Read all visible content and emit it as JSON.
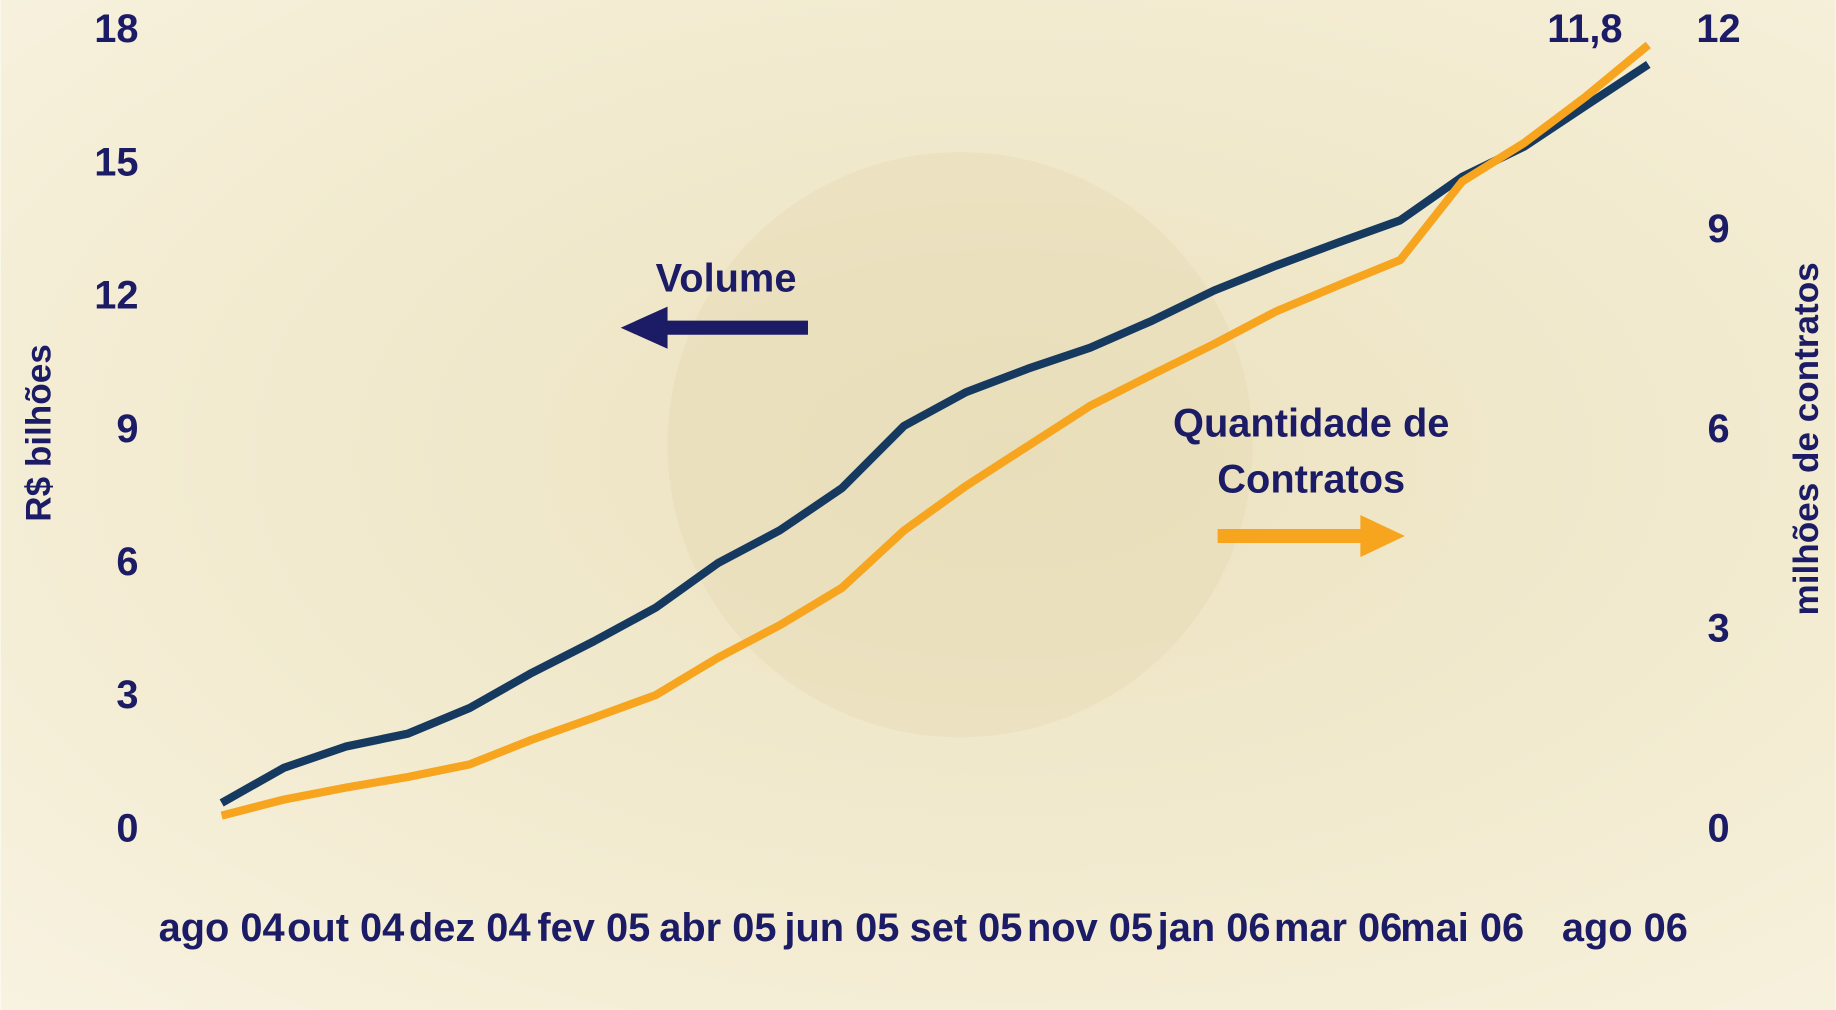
{
  "chart_data": {
    "type": "line",
    "categories": [
      "ago 04",
      null,
      "out 04",
      null,
      "dez 04",
      null,
      "fev 05",
      null,
      "abr 05",
      null,
      "jun 05",
      null,
      "set 05",
      null,
      "nov 05",
      null,
      "jan 06",
      null,
      "mar 06",
      null,
      "mai 06",
      null,
      null,
      "ago 06"
    ],
    "series": [
      {
        "name": "Volume",
        "color": "#163a5f",
        "axis": "y",
        "values": [
          0.63,
          1.42,
          1.9,
          2.19,
          2.77,
          3.56,
          4.27,
          5.03,
          6.03,
          6.77,
          7.72,
          9.12,
          9.88,
          10.41,
          10.88,
          11.49,
          12.17,
          12.73,
          13.25,
          13.75,
          14.73,
          15.41,
          16.34,
          17.26
        ]
      },
      {
        "name": "Quantidade de Contratos",
        "color": "#f7a51f",
        "axis": "y2",
        "values": [
          0.23,
          0.47,
          0.65,
          0.81,
          1.0,
          1.37,
          1.7,
          2.04,
          2.6,
          3.09,
          3.65,
          4.51,
          5.18,
          5.78,
          6.38,
          6.85,
          7.31,
          7.8,
          8.19,
          8.57,
          9.75,
          10.33,
          11.03,
          11.8
        ],
        "value_labels": [
          null,
          null,
          null,
          null,
          null,
          null,
          null,
          null,
          null,
          null,
          null,
          null,
          null,
          null,
          null,
          null,
          null,
          null,
          null,
          null,
          null,
          null,
          null,
          "11,8"
        ]
      }
    ],
    "y_label": "R$ bilhões",
    "y2_label": "milhões de contratos",
    "ylim": [
      0,
      18
    ],
    "yticks": [
      0,
      3,
      6,
      9,
      12,
      15,
      18
    ],
    "y2lim": [
      0,
      12
    ],
    "y2ticks": [
      0,
      3,
      6,
      9,
      12
    ]
  }
}
